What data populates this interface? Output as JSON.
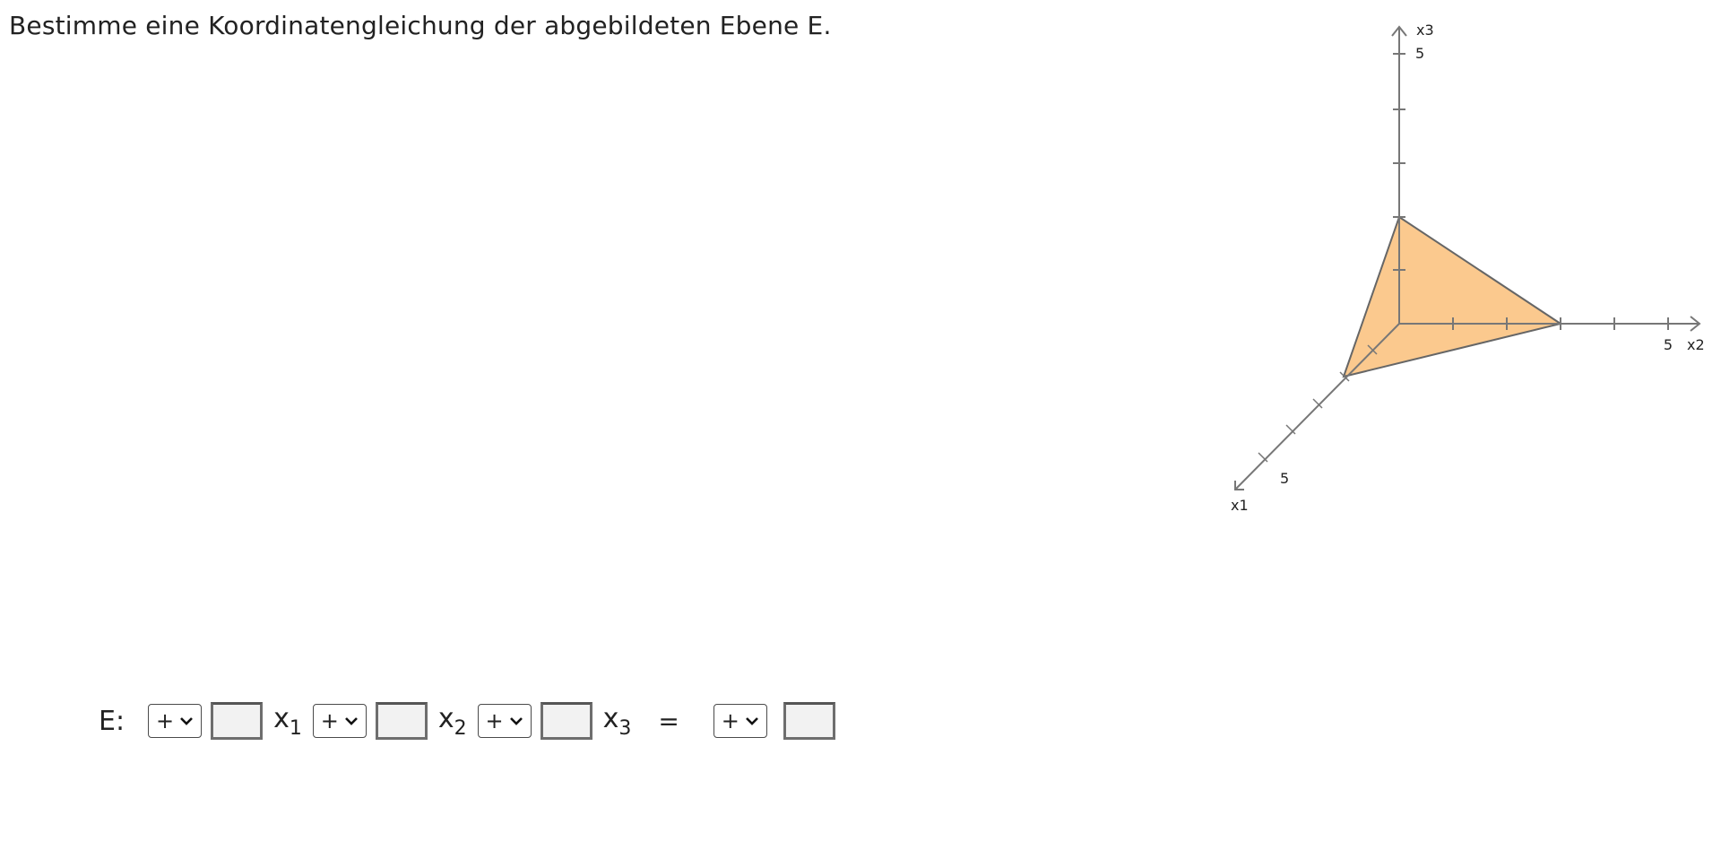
{
  "task": {
    "prompt": "Bestimme eine Koordinatengleichung der abgebildeten Ebene E."
  },
  "figure": {
    "axes": {
      "x1": {
        "label": "x1",
        "tick_label": "5"
      },
      "x2": {
        "label": "x2",
        "tick_label": "5"
      },
      "x3": {
        "label": "x3",
        "tick_label": "5"
      }
    },
    "plane_fill_color": "#fbc98e",
    "plane_edge_color": "#666666",
    "axis_color": "#777777"
  },
  "equation": {
    "label": "E:",
    "sign_options_selected": [
      "+",
      "+",
      "+",
      "+"
    ],
    "coef_values": [
      "",
      "",
      "",
      ""
    ],
    "var_base": "x",
    "var_subs": [
      "1",
      "2",
      "3"
    ],
    "equals": "="
  }
}
